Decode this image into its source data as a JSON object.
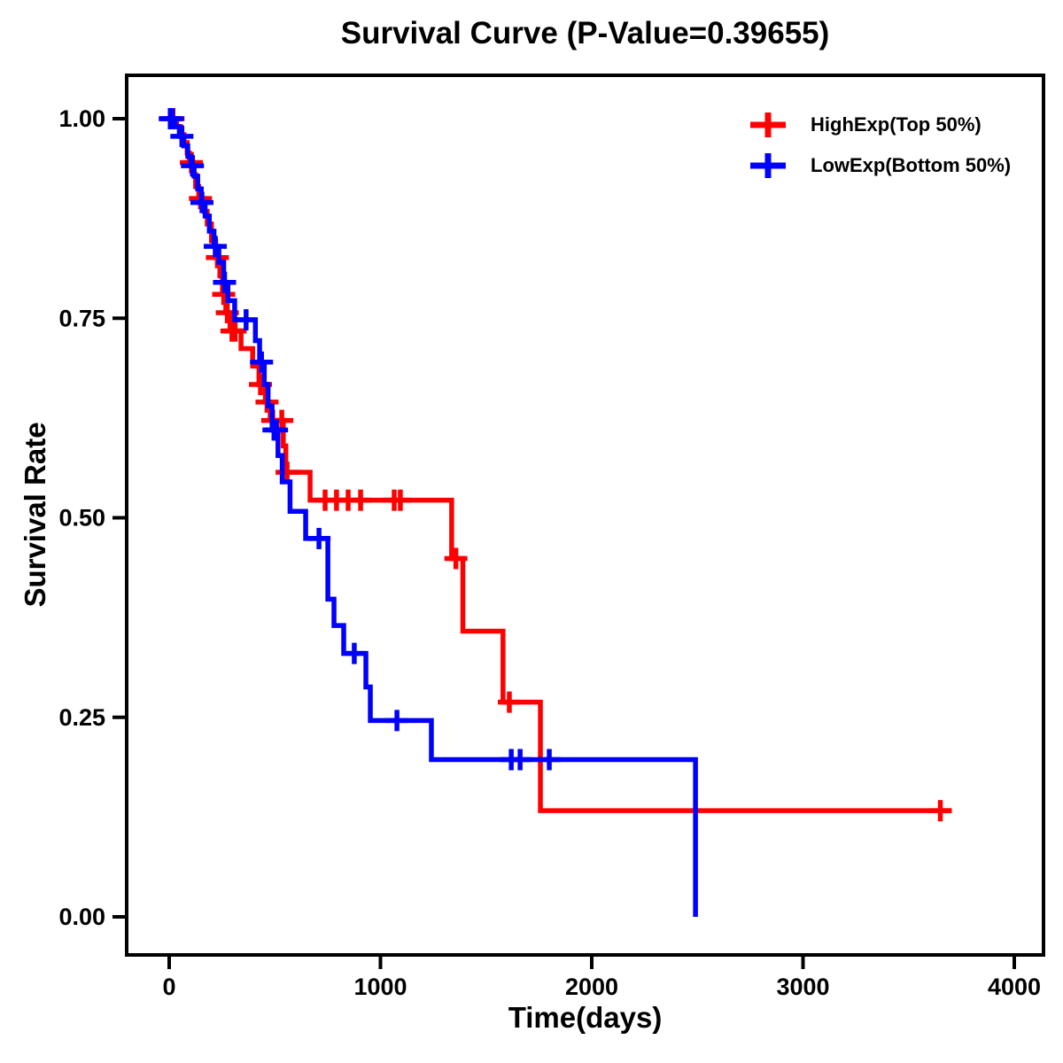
{
  "chart_data": {
    "type": "line",
    "subtype": "kaplan_meier_step_curve",
    "title": "Survival Curve (P-Value=0.39655)",
    "p_value": "0.39655",
    "xlabel": "Time(days)",
    "ylabel": "Survival Rate",
    "xlim": [
      0,
      4000
    ],
    "ylim": [
      0.0,
      1.0
    ],
    "grid": false,
    "legend_position": "top-right",
    "x_ticks": [
      {
        "label": "0",
        "value": 0
      },
      {
        "label": "1000",
        "value": 1000
      },
      {
        "label": "2000",
        "value": 2000
      },
      {
        "label": "3000",
        "value": 3000
      },
      {
        "label": "4000",
        "value": 4000
      }
    ],
    "y_ticks": [
      {
        "label": "0.00",
        "value": 0.0
      },
      {
        "label": "0.25",
        "value": 0.25
      },
      {
        "label": "0.50",
        "value": 0.5
      },
      {
        "label": "0.75",
        "value": 0.75
      },
      {
        "label": "1.00",
        "value": 1.0
      }
    ],
    "series": [
      {
        "key": "highexp",
        "name": "HighExp(Top 50%)",
        "color": "#FF0000",
        "end_x": 3700,
        "steps": [
          [
            0,
            1.0
          ],
          [
            35,
            0.99
          ],
          [
            55,
            0.98
          ],
          [
            70,
            0.97
          ],
          [
            85,
            0.957
          ],
          [
            95,
            0.945
          ],
          [
            115,
            0.93
          ],
          [
            125,
            0.915
          ],
          [
            140,
            0.9
          ],
          [
            165,
            0.884
          ],
          [
            180,
            0.868
          ],
          [
            200,
            0.847
          ],
          [
            220,
            0.826
          ],
          [
            240,
            0.803
          ],
          [
            252,
            0.78
          ],
          [
            268,
            0.757
          ],
          [
            288,
            0.734
          ],
          [
            340,
            0.712
          ],
          [
            395,
            0.69
          ],
          [
            425,
            0.667
          ],
          [
            455,
            0.645
          ],
          [
            478,
            0.622
          ],
          [
            540,
            0.59
          ],
          [
            552,
            0.557
          ],
          [
            667,
            0.522
          ],
          [
            1337,
            0.449
          ],
          [
            1390,
            0.358
          ],
          [
            1580,
            0.269
          ],
          [
            1757,
            0.133
          ]
        ],
        "censors": [
          [
            8,
            1.0
          ],
          [
            18,
            1.0
          ],
          [
            105,
            0.945
          ],
          [
            148,
            0.9
          ],
          [
            228,
            0.826
          ],
          [
            258,
            0.78
          ],
          [
            275,
            0.757
          ],
          [
            297,
            0.734
          ],
          [
            312,
            0.734
          ],
          [
            432,
            0.667
          ],
          [
            463,
            0.645
          ],
          [
            490,
            0.622
          ],
          [
            533,
            0.622
          ],
          [
            558,
            0.557
          ],
          [
            738,
            0.522
          ],
          [
            792,
            0.522
          ],
          [
            847,
            0.522
          ],
          [
            906,
            0.522
          ],
          [
            1065,
            0.522
          ],
          [
            1094,
            0.522
          ],
          [
            1357,
            0.449
          ],
          [
            1610,
            0.269
          ],
          [
            3650,
            0.133
          ]
        ]
      },
      {
        "key": "lowexp",
        "name": "LowExp(Bottom 50%)",
        "color": "#0000FF",
        "end_x": 2491,
        "steps": [
          [
            0,
            1.0
          ],
          [
            28,
            0.99
          ],
          [
            48,
            0.978
          ],
          [
            68,
            0.966
          ],
          [
            88,
            0.953
          ],
          [
            103,
            0.941
          ],
          [
            118,
            0.928
          ],
          [
            135,
            0.912
          ],
          [
            152,
            0.895
          ],
          [
            170,
            0.878
          ],
          [
            190,
            0.859
          ],
          [
            212,
            0.84
          ],
          [
            235,
            0.82
          ],
          [
            258,
            0.795
          ],
          [
            278,
            0.772
          ],
          [
            310,
            0.748
          ],
          [
            408,
            0.722
          ],
          [
            428,
            0.695
          ],
          [
            450,
            0.667
          ],
          [
            468,
            0.64
          ],
          [
            487,
            0.61
          ],
          [
            515,
            0.578
          ],
          [
            535,
            0.545
          ],
          [
            572,
            0.508
          ],
          [
            646,
            0.474
          ],
          [
            751,
            0.398
          ],
          [
            780,
            0.365
          ],
          [
            826,
            0.33
          ],
          [
            931,
            0.288
          ],
          [
            952,
            0.246
          ],
          [
            1241,
            0.197
          ],
          [
            2491,
            0.0
          ]
        ],
        "censors": [
          [
            5,
            1.0
          ],
          [
            15,
            1.0
          ],
          [
            60,
            0.978
          ],
          [
            110,
            0.941
          ],
          [
            155,
            0.895
          ],
          [
            218,
            0.84
          ],
          [
            262,
            0.795
          ],
          [
            364,
            0.748
          ],
          [
            437,
            0.695
          ],
          [
            496,
            0.61
          ],
          [
            508,
            0.61
          ],
          [
            709,
            0.474
          ],
          [
            876,
            0.33
          ],
          [
            1078,
            0.246
          ],
          [
            1619,
            0.197
          ],
          [
            1661,
            0.197
          ],
          [
            1799,
            0.197
          ]
        ]
      }
    ]
  }
}
